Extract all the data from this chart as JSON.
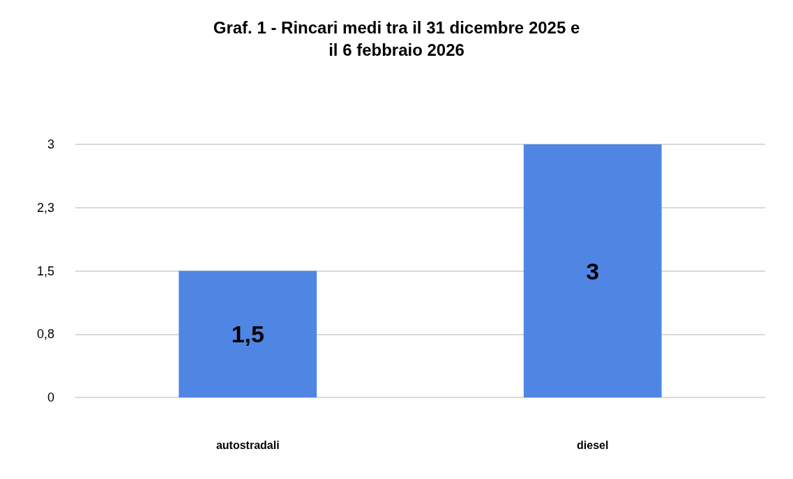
{
  "chart_data": {
    "type": "bar",
    "title": "Graf. 1 - Rincari medi tra il 31 dicembre 2025 e\nil 6 febbraio 2026",
    "categories": [
      "autostradali",
      "diesel"
    ],
    "values": [
      1.5,
      3
    ],
    "color": "#4f86e3",
    "value_labels": [
      "1,5",
      "3"
    ],
    "ylim": [
      0,
      3
    ],
    "yticks": [
      0,
      {
        "value": 0.75,
        "label": "0,8"
      },
      {
        "value": 1.5,
        "label": "1,5"
      },
      {
        "value": 2.25,
        "label": "2,3"
      },
      3
    ],
    "grid": "y"
  }
}
